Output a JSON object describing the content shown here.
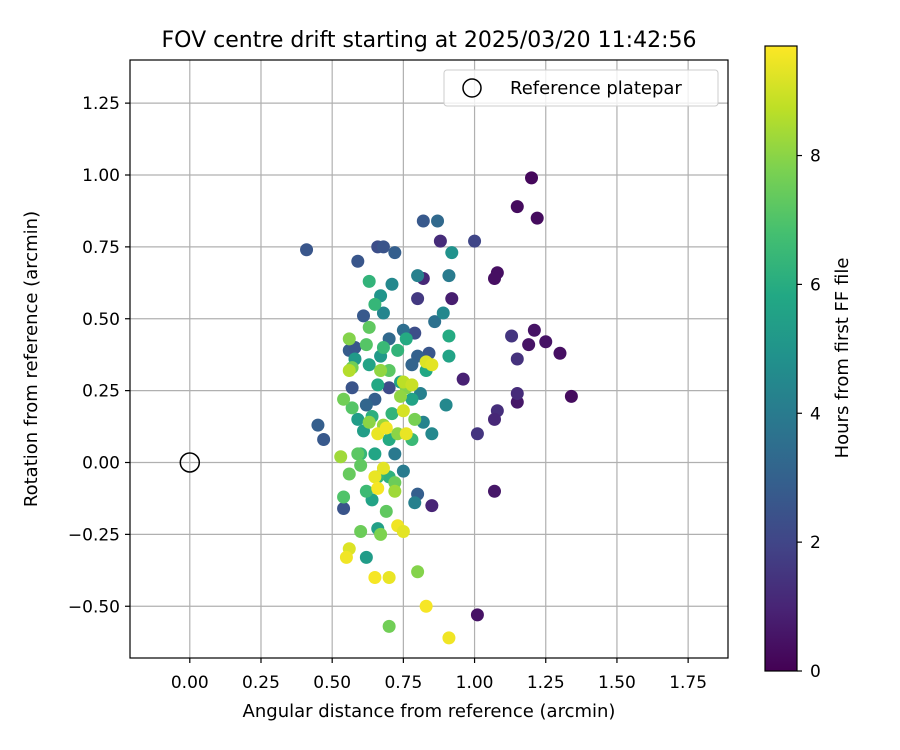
{
  "chart_data": {
    "type": "scatter",
    "title": "FOV centre drift starting at 2025/03/20 11:42:56",
    "xlabel": "Angular distance from reference (arcmin)",
    "ylabel": "Rotation from reference (arcmin)",
    "xlim": [
      -0.21,
      1.89
    ],
    "ylim": [
      -0.68,
      1.4
    ],
    "xticks": [
      0.0,
      0.25,
      0.5,
      0.75,
      1.0,
      1.25,
      1.5,
      1.75
    ],
    "xtick_labels": [
      "0.00",
      "0.25",
      "0.50",
      "0.75",
      "1.00",
      "1.25",
      "1.50",
      "1.75"
    ],
    "yticks": [
      -0.5,
      -0.25,
      0.0,
      0.25,
      0.5,
      0.75,
      1.0,
      1.25
    ],
    "ytick_labels": [
      "−0.50",
      "−0.25",
      "0.00",
      "0.25",
      "0.50",
      "0.75",
      "1.00",
      "1.25"
    ],
    "grid": true,
    "legend": {
      "position": "top-right",
      "entries": [
        "Reference platepar"
      ]
    },
    "reference_point": {
      "x": 0.0,
      "y": 0.0,
      "label": "Reference platepar"
    },
    "colorbar": {
      "label": "Hours from first FF file",
      "colormap": "viridis",
      "range": [
        0,
        9.7
      ],
      "ticks": [
        0,
        2,
        4,
        6,
        8
      ],
      "tick_labels": [
        "0",
        "2",
        "4",
        "6",
        "8"
      ]
    },
    "points": [
      {
        "x": 1.2,
        "y": 0.99,
        "c": 0.2
      },
      {
        "x": 1.15,
        "y": 0.89,
        "c": 0.3
      },
      {
        "x": 1.22,
        "y": 0.85,
        "c": 0.3
      },
      {
        "x": 1.08,
        "y": 0.66,
        "c": 0.4
      },
      {
        "x": 1.07,
        "y": 0.64,
        "c": 0.4
      },
      {
        "x": 1.21,
        "y": 0.46,
        "c": 0.5
      },
      {
        "x": 1.25,
        "y": 0.42,
        "c": 0.5
      },
      {
        "x": 1.19,
        "y": 0.41,
        "c": 0.5
      },
      {
        "x": 1.3,
        "y": 0.38,
        "c": 0.4
      },
      {
        "x": 1.34,
        "y": 0.23,
        "c": 0.3
      },
      {
        "x": 1.15,
        "y": 0.21,
        "c": 0.6
      },
      {
        "x": 1.07,
        "y": -0.1,
        "c": 0.6
      },
      {
        "x": 1.01,
        "y": -0.53,
        "c": 0.5
      },
      {
        "x": 1.13,
        "y": 0.44,
        "c": 1.5
      },
      {
        "x": 1.15,
        "y": 0.36,
        "c": 1.4
      },
      {
        "x": 1.15,
        "y": 0.24,
        "c": 1.2
      },
      {
        "x": 1.08,
        "y": 0.18,
        "c": 1.3
      },
      {
        "x": 1.07,
        "y": 0.15,
        "c": 1.1
      },
      {
        "x": 1.01,
        "y": 0.1,
        "c": 1.5
      },
      {
        "x": 0.96,
        "y": 0.29,
        "c": 0.9
      },
      {
        "x": 0.92,
        "y": 0.57,
        "c": 0.8
      },
      {
        "x": 0.88,
        "y": 0.77,
        "c": 1.2
      },
      {
        "x": 0.82,
        "y": 0.64,
        "c": 1.1
      },
      {
        "x": 0.8,
        "y": 0.57,
        "c": 1.6
      },
      {
        "x": 0.85,
        "y": -0.15,
        "c": 1.0
      },
      {
        "x": 1.0,
        "y": 0.77,
        "c": 2.0
      },
      {
        "x": 0.41,
        "y": 0.74,
        "c": 2.6
      },
      {
        "x": 0.66,
        "y": 0.75,
        "c": 2.3
      },
      {
        "x": 0.68,
        "y": 0.75,
        "c": 2.5
      },
      {
        "x": 0.72,
        "y": 0.73,
        "c": 2.9
      },
      {
        "x": 0.59,
        "y": 0.7,
        "c": 2.6
      },
      {
        "x": 0.82,
        "y": 0.84,
        "c": 2.7
      },
      {
        "x": 0.87,
        "y": 0.84,
        "c": 3.3
      },
      {
        "x": 0.45,
        "y": 0.13,
        "c": 2.9
      },
      {
        "x": 0.47,
        "y": 0.08,
        "c": 2.7
      },
      {
        "x": 0.54,
        "y": -0.16,
        "c": 2.5
      },
      {
        "x": 0.56,
        "y": 0.39,
        "c": 2.8
      },
      {
        "x": 0.58,
        "y": 0.4,
        "c": 2.6
      },
      {
        "x": 0.57,
        "y": 0.26,
        "c": 2.5
      },
      {
        "x": 0.61,
        "y": 0.51,
        "c": 2.7
      },
      {
        "x": 0.65,
        "y": 0.22,
        "c": 2.9
      },
      {
        "x": 0.7,
        "y": 0.26,
        "c": 2.2
      },
      {
        "x": 0.79,
        "y": 0.45,
        "c": 2.3
      },
      {
        "x": 0.84,
        "y": 0.38,
        "c": 2.6
      },
      {
        "x": 0.8,
        "y": -0.11,
        "c": 2.9
      },
      {
        "x": 0.8,
        "y": 0.37,
        "c": 3.0
      },
      {
        "x": 0.78,
        "y": 0.34,
        "c": 3.1
      },
      {
        "x": 0.62,
        "y": 0.2,
        "c": 3.2
      },
      {
        "x": 0.7,
        "y": 0.43,
        "c": 3.3
      },
      {
        "x": 0.75,
        "y": 0.46,
        "c": 3.5
      },
      {
        "x": 0.86,
        "y": 0.49,
        "c": 3.6
      },
      {
        "x": 0.8,
        "y": 0.65,
        "c": 4.2
      },
      {
        "x": 0.91,
        "y": 0.65,
        "c": 4.0
      },
      {
        "x": 0.92,
        "y": 0.73,
        "c": 4.9
      },
      {
        "x": 0.89,
        "y": 0.52,
        "c": 4.5
      },
      {
        "x": 0.81,
        "y": 0.24,
        "c": 4.2
      },
      {
        "x": 0.82,
        "y": 0.14,
        "c": 4.3
      },
      {
        "x": 0.85,
        "y": 0.1,
        "c": 4.5
      },
      {
        "x": 0.9,
        "y": 0.2,
        "c": 4.5
      },
      {
        "x": 0.75,
        "y": -0.03,
        "c": 4.0
      },
      {
        "x": 0.72,
        "y": 0.03,
        "c": 3.9
      },
      {
        "x": 0.79,
        "y": -0.14,
        "c": 4.2
      },
      {
        "x": 0.68,
        "y": 0.52,
        "c": 4.4
      },
      {
        "x": 0.71,
        "y": 0.62,
        "c": 4.5
      },
      {
        "x": 0.67,
        "y": 0.58,
        "c": 5.0
      },
      {
        "x": 0.67,
        "y": 0.37,
        "c": 5.2
      },
      {
        "x": 0.66,
        "y": -0.23,
        "c": 5.5
      },
      {
        "x": 0.64,
        "y": -0.13,
        "c": 5.6
      },
      {
        "x": 0.62,
        "y": -0.33,
        "c": 5.3
      },
      {
        "x": 0.58,
        "y": 0.36,
        "c": 5.2
      },
      {
        "x": 0.63,
        "y": 0.34,
        "c": 5.6
      },
      {
        "x": 0.66,
        "y": 0.27,
        "c": 5.8
      },
      {
        "x": 0.61,
        "y": 0.11,
        "c": 5.4
      },
      {
        "x": 0.59,
        "y": 0.15,
        "c": 5.3
      },
      {
        "x": 0.65,
        "y": 0.03,
        "c": 5.7
      },
      {
        "x": 0.7,
        "y": 0.08,
        "c": 5.9
      },
      {
        "x": 0.74,
        "y": 0.28,
        "c": 5.5
      },
      {
        "x": 0.76,
        "y": 0.43,
        "c": 5.9
      },
      {
        "x": 0.78,
        "y": 0.22,
        "c": 5.6
      },
      {
        "x": 0.83,
        "y": 0.32,
        "c": 5.8
      },
      {
        "x": 0.91,
        "y": 0.37,
        "c": 5.6
      },
      {
        "x": 0.91,
        "y": 0.44,
        "c": 5.9
      },
      {
        "x": 0.63,
        "y": 0.63,
        "c": 6.3
      },
      {
        "x": 0.65,
        "y": 0.55,
        "c": 6.4
      },
      {
        "x": 0.68,
        "y": 0.4,
        "c": 6.5
      },
      {
        "x": 0.73,
        "y": 0.39,
        "c": 6.3
      },
      {
        "x": 0.78,
        "y": 0.08,
        "c": 6.5
      },
      {
        "x": 0.71,
        "y": 0.17,
        "c": 6.3
      },
      {
        "x": 0.64,
        "y": 0.16,
        "c": 6.1
      },
      {
        "x": 0.6,
        "y": 0.03,
        "c": 6.4
      },
      {
        "x": 0.62,
        "y": -0.1,
        "c": 6.6
      },
      {
        "x": 0.7,
        "y": -0.05,
        "c": 6.2
      },
      {
        "x": 0.66,
        "y": -0.05,
        "c": 6.4
      },
      {
        "x": 0.54,
        "y": -0.12,
        "c": 7.0
      },
      {
        "x": 0.62,
        "y": 0.41,
        "c": 7.1
      },
      {
        "x": 0.63,
        "y": 0.47,
        "c": 7.3
      },
      {
        "x": 0.7,
        "y": 0.32,
        "c": 7.2
      },
      {
        "x": 0.57,
        "y": 0.33,
        "c": 7.6
      },
      {
        "x": 0.56,
        "y": 0.43,
        "c": 7.9
      },
      {
        "x": 0.57,
        "y": 0.19,
        "c": 7.1
      },
      {
        "x": 0.54,
        "y": 0.22,
        "c": 7.6
      },
      {
        "x": 0.59,
        "y": 0.03,
        "c": 7.2
      },
      {
        "x": 0.56,
        "y": -0.04,
        "c": 7.4
      },
      {
        "x": 0.6,
        "y": -0.01,
        "c": 7.3
      },
      {
        "x": 0.6,
        "y": -0.24,
        "c": 7.5
      },
      {
        "x": 0.67,
        "y": -0.25,
        "c": 7.8
      },
      {
        "x": 0.69,
        "y": -0.17,
        "c": 7.3
      },
      {
        "x": 0.72,
        "y": -0.07,
        "c": 7.5
      },
      {
        "x": 0.79,
        "y": 0.15,
        "c": 7.7
      },
      {
        "x": 0.76,
        "y": 0.26,
        "c": 7.9
      },
      {
        "x": 0.7,
        "y": -0.57,
        "c": 7.6
      },
      {
        "x": 0.8,
        "y": -0.38,
        "c": 7.9
      },
      {
        "x": 0.67,
        "y": 0.32,
        "c": 8.1
      },
      {
        "x": 0.74,
        "y": 0.23,
        "c": 8.1
      },
      {
        "x": 0.73,
        "y": 0.1,
        "c": 8.0
      },
      {
        "x": 0.68,
        "y": 0.13,
        "c": 8.2
      },
      {
        "x": 0.63,
        "y": 0.14,
        "c": 8.0
      },
      {
        "x": 0.72,
        "y": -0.1,
        "c": 8.3
      },
      {
        "x": 0.53,
        "y": 0.02,
        "c": 8.3
      },
      {
        "x": 0.56,
        "y": 0.32,
        "c": 8.6
      },
      {
        "x": 0.75,
        "y": 0.28,
        "c": 8.7
      },
      {
        "x": 0.78,
        "y": 0.27,
        "c": 8.9
      },
      {
        "x": 0.83,
        "y": 0.35,
        "c": 9.2
      },
      {
        "x": 0.85,
        "y": 0.34,
        "c": 9.3
      },
      {
        "x": 0.75,
        "y": 0.18,
        "c": 9.1
      },
      {
        "x": 0.66,
        "y": 0.1,
        "c": 9.4
      },
      {
        "x": 0.69,
        "y": 0.12,
        "c": 9.5
      },
      {
        "x": 0.76,
        "y": 0.1,
        "c": 9.4
      },
      {
        "x": 0.68,
        "y": -0.02,
        "c": 9.3
      },
      {
        "x": 0.65,
        "y": -0.05,
        "c": 9.4
      },
      {
        "x": 0.66,
        "y": -0.09,
        "c": 9.6
      },
      {
        "x": 0.73,
        "y": -0.22,
        "c": 9.5
      },
      {
        "x": 0.75,
        "y": -0.24,
        "c": 9.3
      },
      {
        "x": 0.56,
        "y": -0.3,
        "c": 9.2
      },
      {
        "x": 0.55,
        "y": -0.33,
        "c": 9.5
      },
      {
        "x": 0.65,
        "y": -0.4,
        "c": 9.6
      },
      {
        "x": 0.7,
        "y": -0.4,
        "c": 9.4
      },
      {
        "x": 0.83,
        "y": -0.5,
        "c": 9.6
      },
      {
        "x": 0.91,
        "y": -0.61,
        "c": 9.5
      }
    ]
  }
}
